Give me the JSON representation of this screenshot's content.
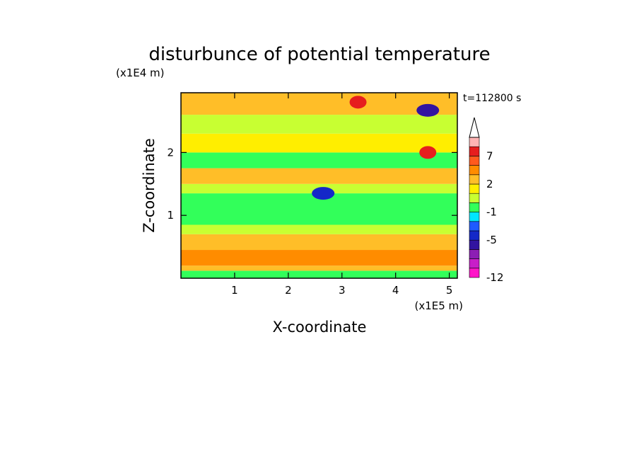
{
  "chart_data": {
    "type": "heatmap",
    "title": "disturbunce of potential temperature",
    "time_label": "t=112800 s",
    "xlabel": "X-coordinate",
    "ylabel": "Z-coordinate",
    "x_unit": "(x1E5 m)",
    "y_unit": "(x1E4 m)",
    "xlim": [
      0,
      5.15
    ],
    "ylim": [
      0,
      2.95
    ],
    "x_ticks": [
      "1",
      "2",
      "3",
      "4",
      "5"
    ],
    "y_ticks": [
      "1",
      "2"
    ],
    "x_tick_values": [
      1,
      2,
      3,
      4,
      5
    ],
    "y_tick_values": [
      1,
      2
    ],
    "colorbar": {
      "levels": [
        -12,
        -10,
        -8,
        -6,
        -5,
        -4,
        -3,
        -1,
        0,
        1,
        2,
        3,
        5,
        7,
        9,
        11
      ],
      "tick_labels": [
        "-12",
        "-5",
        "-1",
        "2",
        "7"
      ],
      "tick_values": [
        -12,
        -5,
        -1,
        2,
        7
      ],
      "colors": [
        "#ff14c8",
        "#c81ec8",
        "#8c1eb4",
        "#3214a0",
        "#1428c8",
        "#1e5aff",
        "#00e6ff",
        "#32ff5a",
        "#c8ff32",
        "#ffee00",
        "#ffbe28",
        "#ff8c00",
        "#ff5a1e",
        "#e61e1e",
        "#ffb4b4"
      ],
      "extend": "max"
    },
    "bands": [
      {
        "z": [
          0.0,
          0.12
        ],
        "label": "-1"
      },
      {
        "z": [
          0.12,
          0.2
        ],
        "label": "2"
      },
      {
        "z": [
          0.2,
          0.45
        ],
        "label": "3"
      },
      {
        "z": [
          0.45,
          0.7
        ],
        "label": "2"
      },
      {
        "z": [
          0.7,
          0.85
        ],
        "label": "0"
      },
      {
        "z": [
          0.85,
          1.35
        ],
        "label": "-1"
      },
      {
        "z": [
          1.35,
          1.5
        ],
        "label": "0"
      },
      {
        "z": [
          1.5,
          1.75
        ],
        "label": "2"
      },
      {
        "z": [
          1.75,
          2.0
        ],
        "label": "-1"
      },
      {
        "z": [
          2.0,
          2.3
        ],
        "label": "1"
      },
      {
        "z": [
          2.3,
          2.6
        ],
        "label": "0"
      },
      {
        "z": [
          2.6,
          2.95
        ],
        "label": "2"
      }
    ],
    "features": [
      {
        "x": 4.6,
        "z": 2.67,
        "value": -6,
        "kind": "min"
      },
      {
        "x": 4.6,
        "z": 2.0,
        "value": 7,
        "kind": "max"
      },
      {
        "x": 2.65,
        "z": 1.35,
        "value": -5,
        "kind": "min"
      },
      {
        "x": 3.3,
        "z": 2.8,
        "value": 7,
        "kind": "max"
      }
    ]
  }
}
